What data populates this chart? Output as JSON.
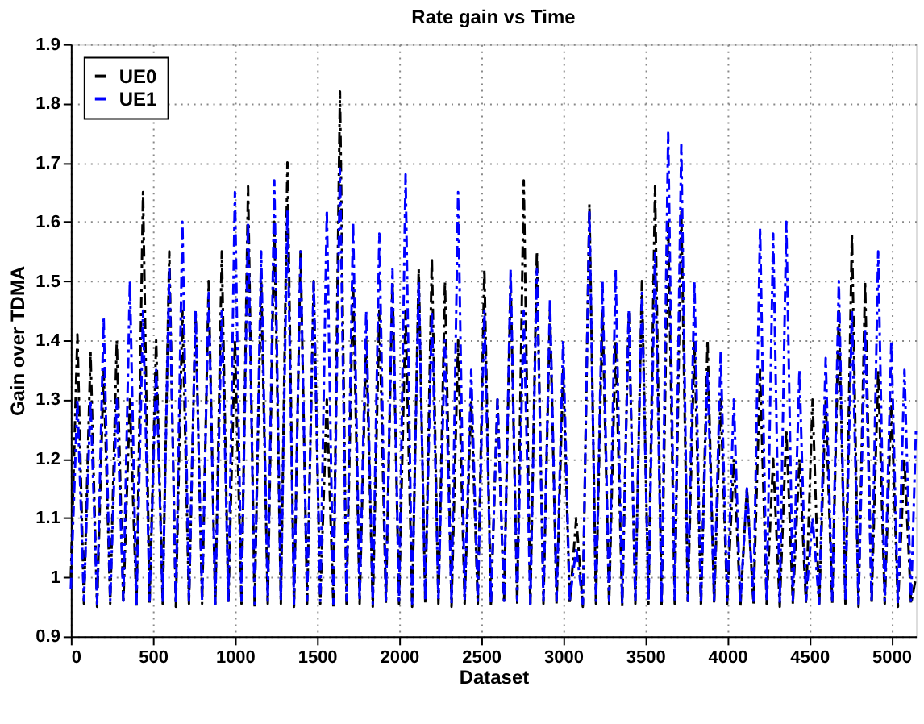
{
  "chart_data": {
    "type": "line",
    "title": "Rate gain  vs Time",
    "xlabel": "Dataset",
    "ylabel": "Gain over TDMA",
    "x": [
      0,
      40,
      80,
      120,
      160,
      200,
      240,
      280,
      320,
      360,
      400,
      440,
      480,
      520,
      560,
      600,
      640,
      680,
      720,
      760,
      800,
      840,
      880,
      920,
      960,
      1000,
      1040,
      1080,
      1120,
      1160,
      1200,
      1240,
      1280,
      1320,
      1360,
      1400,
      1440,
      1480,
      1520,
      1560,
      1600,
      1640,
      1680,
      1720,
      1760,
      1800,
      1840,
      1880,
      1920,
      1960,
      2000,
      2040,
      2080,
      2120,
      2160,
      2200,
      2240,
      2280,
      2320,
      2360,
      2400,
      2440,
      2480,
      2520,
      2560,
      2600,
      2640,
      2680,
      2720,
      2760,
      2800,
      2840,
      2880,
      2920,
      2960,
      3000,
      3040,
      3080,
      3120,
      3160,
      3200,
      3240,
      3280,
      3320,
      3360,
      3400,
      3440,
      3480,
      3520,
      3560,
      3600,
      3640,
      3680,
      3720,
      3760,
      3800,
      3840,
      3880,
      3920,
      3960,
      4000,
      4040,
      4080,
      4120,
      4160,
      4200,
      4240,
      4280,
      4320,
      4360,
      4400,
      4440,
      4480,
      4520,
      4560,
      4600,
      4640,
      4680,
      4720,
      4760,
      4800,
      4840,
      4880,
      4920,
      4960,
      5000,
      5040,
      5080,
      5120,
      5150
    ],
    "series": [
      {
        "name": "UE0",
        "color": "#000000",
        "values": [
          1.0,
          1.41,
          0.955,
          1.38,
          0.95,
          1.35,
          0.955,
          1.4,
          0.955,
          1.3,
          0.95,
          1.65,
          0.955,
          1.4,
          0.955,
          1.55,
          0.95,
          1.45,
          0.955,
          1.45,
          0.955,
          1.5,
          0.95,
          1.55,
          0.955,
          1.4,
          0.955,
          1.66,
          0.95,
          1.5,
          0.955,
          1.6,
          0.955,
          1.7,
          0.95,
          1.55,
          0.955,
          1.5,
          0.955,
          1.3,
          0.95,
          1.82,
          0.955,
          1.5,
          0.955,
          1.4,
          0.95,
          1.45,
          0.955,
          1.5,
          0.955,
          1.45,
          0.95,
          1.52,
          0.955,
          1.54,
          0.955,
          1.5,
          0.95,
          1.4,
          0.955,
          1.3,
          0.955,
          1.52,
          0.95,
          1.3,
          0.955,
          1.5,
          0.955,
          1.67,
          0.95,
          1.55,
          0.955,
          1.45,
          0.955,
          1.35,
          0.955,
          1.1,
          0.95,
          1.63,
          0.955,
          1.45,
          0.955,
          1.4,
          0.95,
          1.45,
          0.955,
          1.5,
          0.955,
          1.66,
          0.95,
          1.6,
          0.955,
          1.62,
          0.955,
          1.4,
          0.95,
          1.4,
          0.955,
          1.3,
          0.955,
          1.2,
          0.95,
          1.15,
          0.955,
          1.35,
          0.955,
          1.2,
          0.95,
          1.25,
          0.955,
          1.2,
          0.955,
          1.3,
          0.95,
          1.3,
          0.955,
          1.45,
          0.955,
          1.58,
          0.95,
          1.5,
          0.955,
          1.35,
          0.955,
          1.3,
          0.95,
          1.2,
          0.955,
          1.0
        ]
      },
      {
        "name": "UE1",
        "color": "#0000ff",
        "values": [
          0.98,
          1.3,
          0.96,
          1.3,
          0.955,
          1.44,
          0.96,
          1.3,
          0.96,
          1.5,
          0.955,
          1.45,
          0.96,
          1.35,
          0.96,
          1.52,
          0.955,
          1.6,
          0.96,
          1.45,
          0.96,
          1.48,
          0.955,
          1.45,
          0.96,
          1.65,
          0.96,
          1.6,
          0.955,
          1.55,
          0.96,
          1.67,
          0.96,
          1.62,
          0.955,
          1.55,
          0.96,
          1.5,
          0.96,
          1.62,
          0.955,
          1.69,
          0.96,
          1.6,
          0.96,
          1.45,
          0.955,
          1.58,
          0.96,
          1.52,
          0.96,
          1.68,
          0.955,
          1.5,
          0.96,
          1.45,
          0.96,
          1.4,
          0.955,
          1.65,
          0.96,
          1.35,
          0.96,
          1.45,
          0.955,
          1.3,
          0.96,
          1.52,
          0.96,
          1.45,
          0.955,
          1.52,
          0.96,
          1.47,
          0.96,
          1.4,
          0.96,
          1.05,
          0.955,
          1.62,
          0.96,
          1.5,
          0.96,
          1.52,
          0.955,
          1.45,
          0.96,
          1.48,
          0.96,
          1.55,
          0.955,
          1.75,
          0.96,
          1.73,
          0.96,
          1.5,
          0.955,
          1.35,
          0.96,
          1.38,
          0.96,
          1.3,
          0.955,
          1.15,
          0.96,
          1.59,
          0.96,
          1.58,
          0.955,
          1.6,
          0.96,
          1.35,
          0.96,
          1.1,
          0.955,
          1.37,
          0.96,
          1.5,
          0.96,
          1.45,
          0.955,
          1.42,
          0.96,
          1.55,
          0.96,
          1.4,
          0.955,
          1.35,
          0.96,
          1.25
        ]
      }
    ],
    "xlim": [
      0,
      5150
    ],
    "xticks": [
      0,
      500,
      1000,
      1500,
      2000,
      2500,
      3000,
      3500,
      4000,
      4500,
      5000
    ],
    "ylim": [
      0.9,
      1.9
    ],
    "yticks": [
      0.9,
      1,
      1.1,
      1.2,
      1.3,
      1.4,
      1.5,
      1.6,
      1.7,
      1.8,
      1.9
    ],
    "grid": true,
    "legend": "top left",
    "line_style": "dashed",
    "marker": "none"
  }
}
